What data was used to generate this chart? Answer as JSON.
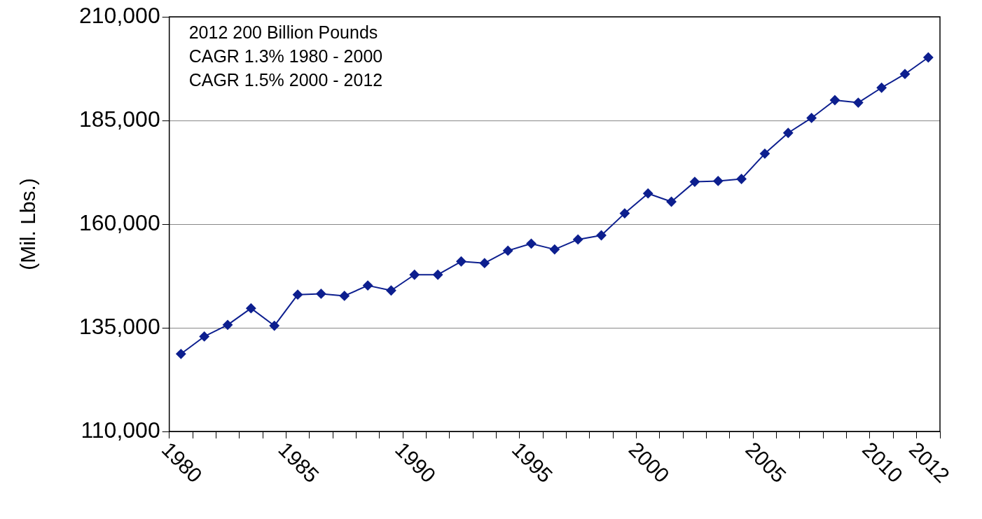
{
  "chart_data": {
    "type": "line",
    "categories": [
      "1980",
      null,
      null,
      null,
      null,
      "1985",
      null,
      null,
      null,
      null,
      "1990",
      null,
      null,
      null,
      null,
      "1995",
      null,
      null,
      null,
      null,
      "2000",
      null,
      null,
      null,
      null,
      "2005",
      null,
      null,
      null,
      null,
      "2010",
      null,
      "2012"
    ],
    "series": [
      {
        "color": "#0d1f8f",
        "values": [
          128700,
          132900,
          135700,
          139700,
          135500,
          143000,
          143200,
          142700,
          145200,
          144000,
          147800,
          147800,
          151000,
          150600,
          153600,
          155300,
          153900,
          156300,
          157300,
          162600,
          167400,
          165400,
          170200,
          170400,
          170900,
          177000,
          182000,
          185600,
          189900,
          189300,
          192900,
          196200,
          200200
        ]
      }
    ],
    "ylabel": "(Mil. Lbs.)",
    "ylim": [
      110000,
      210000
    ],
    "yticks": [
      {
        "value": 110000,
        "label": "110,000"
      },
      {
        "value": 135000,
        "label": "135,000"
      },
      {
        "value": 160000,
        "label": "160,000"
      },
      {
        "value": 185000,
        "label": "185,000"
      },
      {
        "value": 210000,
        "label": "210,000"
      }
    ],
    "annotations": [
      "2012 200 Billion Pounds",
      "CAGR 1.3% 1980 - 2000",
      "CAGR 1.5% 2000 - 2012"
    ],
    "grid": "y",
    "legend": false,
    "marker": "diamond",
    "line_style": "solid"
  }
}
